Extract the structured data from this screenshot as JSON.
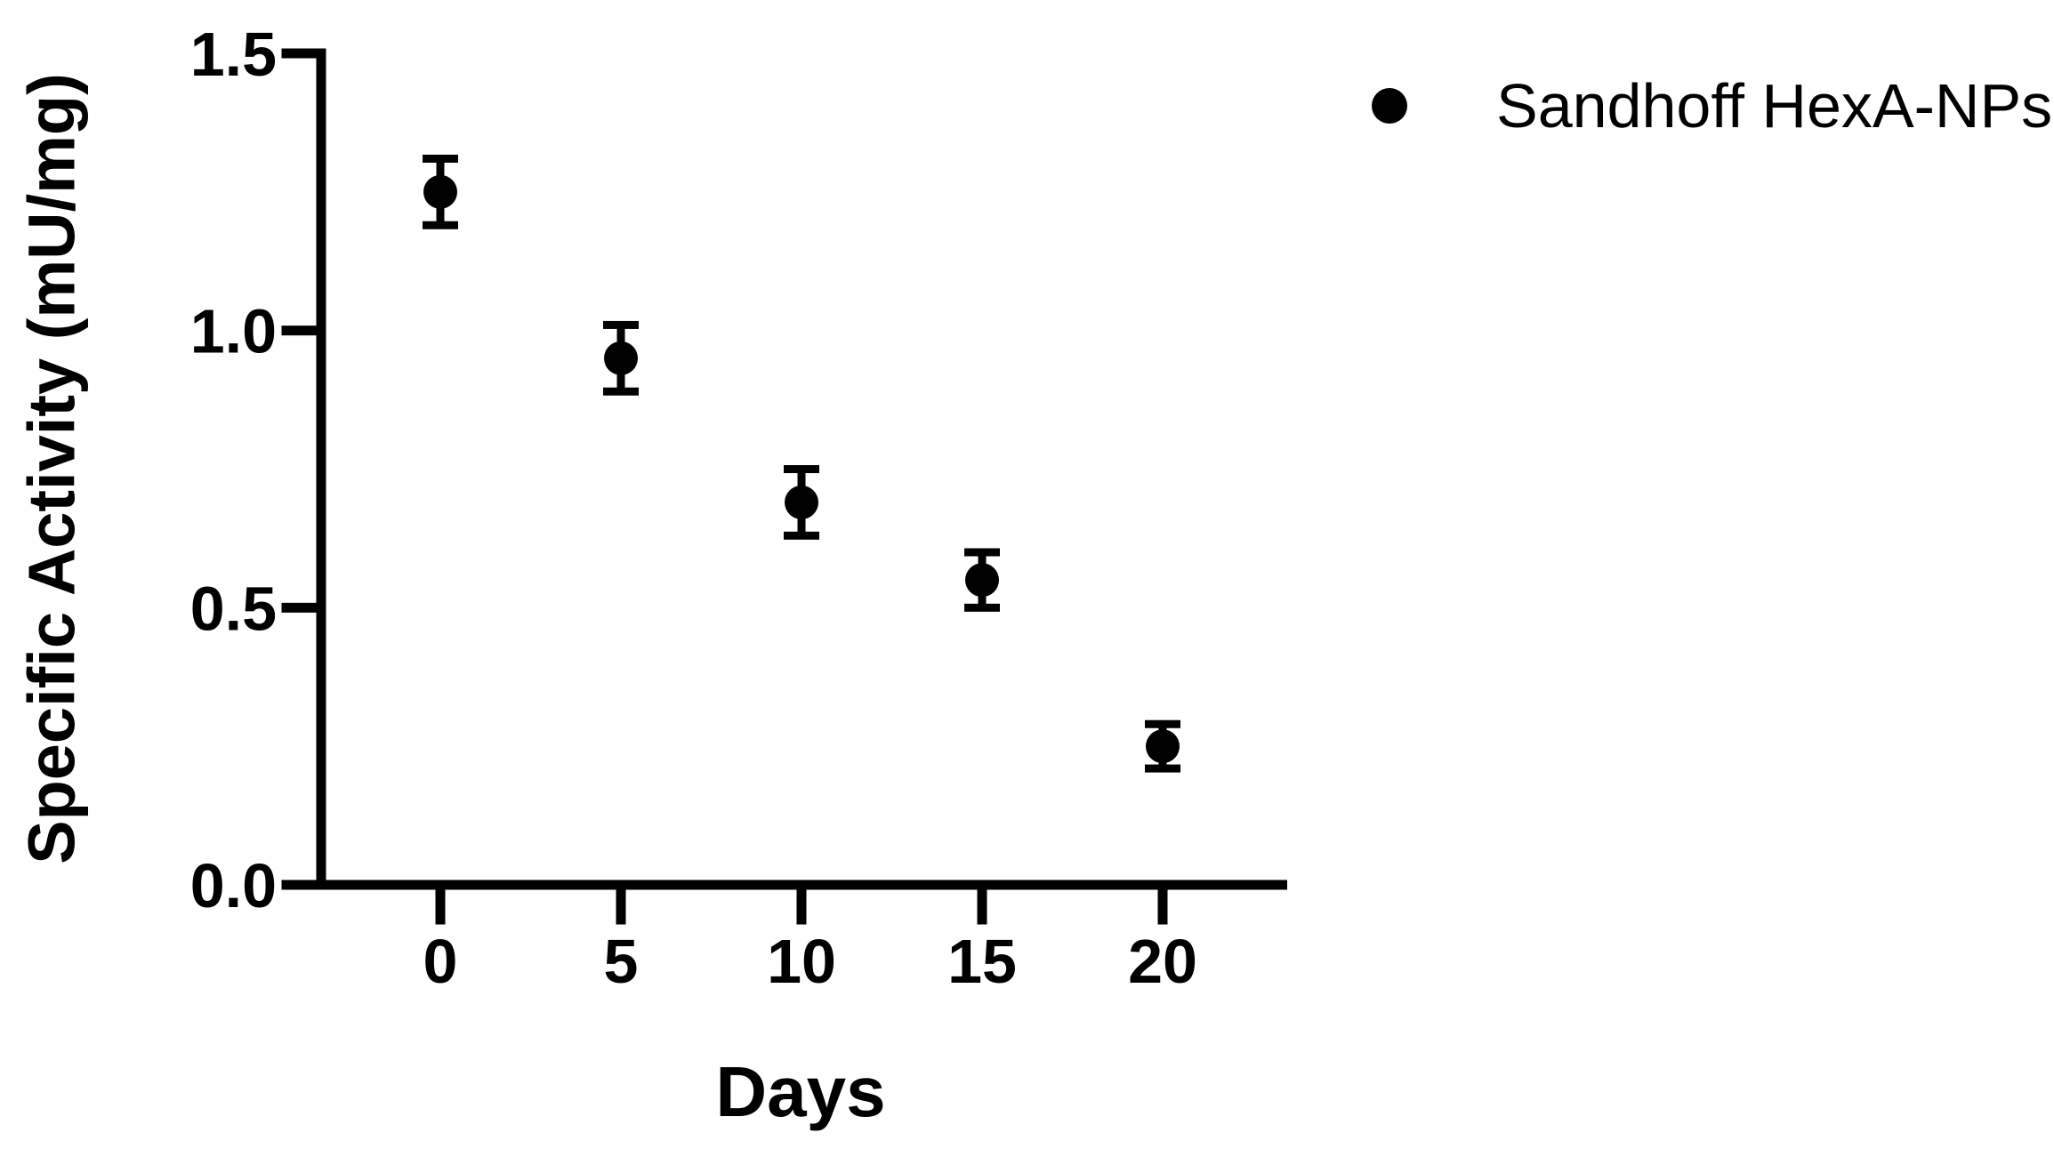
{
  "figure": {
    "background": "#ffffff",
    "ink": "#000000"
  },
  "chart_data": {
    "type": "scatter",
    "title": "",
    "xlabel": "Days",
    "ylabel": "Specific Activity (mU/mg)",
    "ylim": [
      0,
      1.5
    ],
    "xlim": [
      -3.5,
      23.5
    ],
    "grid": false,
    "legend_position": "top-right",
    "x": [
      0,
      5,
      10,
      15,
      20
    ],
    "series": [
      {
        "name": "Sandhoff HexA-NPs",
        "marker": "filled-circle",
        "color": "#000000",
        "values": [
          1.25,
          0.95,
          0.69,
          0.55,
          0.25
        ],
        "yerr": [
          0.06,
          0.06,
          0.06,
          0.05,
          0.04
        ]
      }
    ],
    "xticks": [
      {
        "label": "0",
        "value": 0
      },
      {
        "label": "5",
        "value": 5
      },
      {
        "label": "10",
        "value": 10
      },
      {
        "label": "15",
        "value": 15
      },
      {
        "label": "20",
        "value": 20
      }
    ],
    "yticks": [
      {
        "label": "1.5",
        "value": 1.5
      },
      {
        "label": "1.0",
        "value": 1.0
      },
      {
        "label": "0.5",
        "value": 0.5
      },
      {
        "label": "0.0",
        "value": 0.0
      }
    ]
  }
}
